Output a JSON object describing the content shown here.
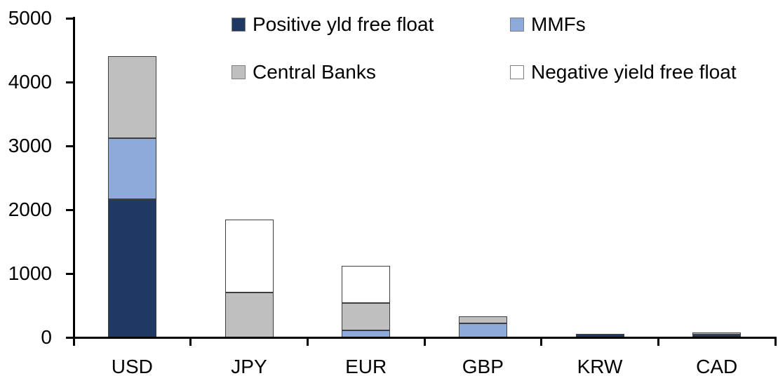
{
  "chart_data": {
    "type": "bar",
    "stacked": true,
    "title": "",
    "xlabel": "",
    "ylabel": "",
    "categories": [
      "USD",
      "JPY",
      "EUR",
      "GBP",
      "KRW",
      "CAD"
    ],
    "series": [
      {
        "name": "Positive yld free float",
        "color": "#1F3864",
        "values": [
          2170,
          0,
          0,
          0,
          55,
          45
        ]
      },
      {
        "name": "MMFs",
        "color": "#8EAADB",
        "values": [
          950,
          0,
          110,
          215,
          0,
          0
        ]
      },
      {
        "name": "Central Banks",
        "color": "#BFBFBF",
        "values": [
          1290,
          700,
          430,
          120,
          0,
          30
        ]
      },
      {
        "name": "Negative yield free float",
        "color": "#FFFFFF",
        "values": [
          0,
          1150,
          580,
          0,
          0,
          0
        ]
      }
    ],
    "ylim": [
      0,
      5000
    ],
    "yticks": [
      0,
      1000,
      2000,
      3000,
      4000,
      5000
    ],
    "grid": false,
    "legend_position": "top",
    "axis_color": "#000000",
    "segment_border_color": "#3F3F3F",
    "background_color": "#FFFFFF"
  }
}
